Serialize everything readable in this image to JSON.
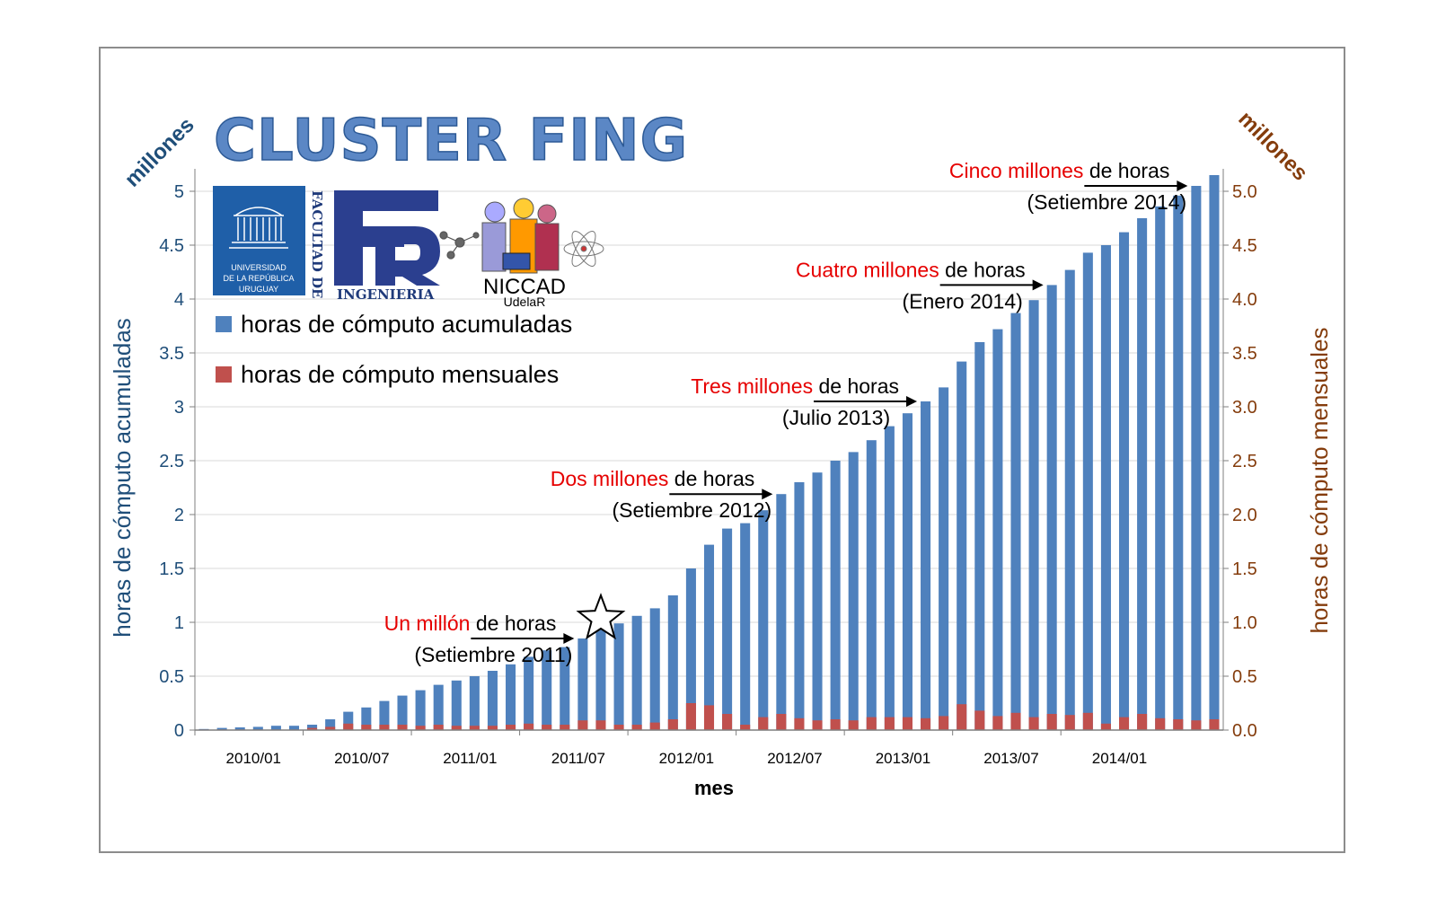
{
  "chart_data": {
    "type": "bar",
    "title": "CLUSTER FING",
    "xlabel": "mes",
    "ylabel_left": "horas de cómputo acumuladas",
    "ylabel_right": "horas de cómputo mensuales",
    "unit_left": "millones",
    "unit_right": "millones",
    "ylim_left": [
      0,
      5
    ],
    "ylim_right": [
      0,
      5
    ],
    "yticks_left": [
      "0",
      "0.5",
      "1",
      "1.5",
      "2",
      "2.5",
      "3",
      "3.5",
      "4",
      "4.5",
      "5"
    ],
    "yticks_right": [
      "0.0",
      "0.5",
      "1.0",
      "1.5",
      "2.0",
      "2.5",
      "3.0",
      "3.5",
      "4.0",
      "4.5",
      "5.0"
    ],
    "xtick_labels": [
      "2010/01",
      "2010/07",
      "2011/01",
      "2011/07",
      "2012/01",
      "2012/07",
      "2013/01",
      "2013/07",
      "2014/01"
    ],
    "categories": [
      "2010/01",
      "2010/02",
      "2010/03",
      "2010/04",
      "2010/05",
      "2010/06",
      "2010/07",
      "2010/08",
      "2010/09",
      "2010/10",
      "2010/11",
      "2010/12",
      "2011/01",
      "2011/02",
      "2011/03",
      "2011/04",
      "2011/05",
      "2011/06",
      "2011/07",
      "2011/08",
      "2011/09",
      "2011/10",
      "2011/11",
      "2011/12",
      "2012/01",
      "2012/02",
      "2012/03",
      "2012/04",
      "2012/05",
      "2012/06",
      "2012/07",
      "2012/08",
      "2012/09",
      "2012/10",
      "2012/11",
      "2012/12",
      "2013/01",
      "2013/02",
      "2013/03",
      "2013/04",
      "2013/05",
      "2013/06",
      "2013/07",
      "2013/08",
      "2013/09",
      "2013/10",
      "2013/11",
      "2013/12",
      "2014/01",
      "2014/02",
      "2014/03",
      "2014/04",
      "2014/05",
      "2014/06",
      "2014/07",
      "2014/08",
      "2014/09"
    ],
    "series": [
      {
        "name": "horas de cómputo acumuladas",
        "color": "#4f81bd",
        "values": [
          0.01,
          0.02,
          0.025,
          0.03,
          0.04,
          0.04,
          0.05,
          0.1,
          0.17,
          0.21,
          0.27,
          0.32,
          0.37,
          0.42,
          0.46,
          0.5,
          0.55,
          0.61,
          0.68,
          0.74,
          0.77,
          0.85,
          0.93,
          0.99,
          1.06,
          1.13,
          1.25,
          1.5,
          1.72,
          1.87,
          1.92,
          2.04,
          2.19,
          2.3,
          2.39,
          2.5,
          2.58,
          2.69,
          2.82,
          2.94,
          3.05,
          3.18,
          3.42,
          3.6,
          3.72,
          3.87,
          3.99,
          4.13,
          4.27,
          4.43,
          4.5,
          4.62,
          4.75,
          4.86,
          4.96,
          5.05,
          5.15
        ]
      },
      {
        "name": "horas de cómputo mensuales",
        "color": "#c0504d",
        "values": [
          0.005,
          0.005,
          0.005,
          0.005,
          0.005,
          0.005,
          0.02,
          0.03,
          0.06,
          0.05,
          0.05,
          0.05,
          0.04,
          0.05,
          0.04,
          0.04,
          0.04,
          0.05,
          0.06,
          0.05,
          0.05,
          0.09,
          0.09,
          0.05,
          0.05,
          0.07,
          0.1,
          0.25,
          0.23,
          0.15,
          0.05,
          0.12,
          0.15,
          0.11,
          0.09,
          0.1,
          0.09,
          0.12,
          0.12,
          0.12,
          0.11,
          0.13,
          0.24,
          0.18,
          0.13,
          0.16,
          0.12,
          0.15,
          0.14,
          0.16,
          0.06,
          0.12,
          0.15,
          0.11,
          0.1,
          0.09,
          0.1
        ]
      }
    ],
    "annotations": [
      {
        "red": "Un millón",
        "black": " de horas",
        "sub": "(Setiembre 2011)",
        "target": "2011/10"
      },
      {
        "red": "Dos millones",
        "black": " de horas",
        "sub": "(Setiembre 2012)",
        "target": "2012/09"
      },
      {
        "red": "Tres millones",
        "black": " de horas",
        "sub": "(Julio 2013)",
        "target": "2013/05"
      },
      {
        "red": "Cuatro millones",
        "black": " de horas",
        "sub": "(Enero 2014)",
        "target": "2013/12"
      },
      {
        "red": "Cinco millones",
        "black": " de horas",
        "sub": "(Setiembre 2014)",
        "target": "2014/08"
      }
    ]
  },
  "logos": {
    "udelar": [
      "UNIVERSIDAD",
      "DE LA REPÚBLICA",
      "URUGUAY"
    ],
    "fing_vertical": "FACULTAD DE",
    "fing_bottom": "INGENIERIA",
    "niccad": "NICCAD",
    "niccad_sub": "UdelaR"
  }
}
